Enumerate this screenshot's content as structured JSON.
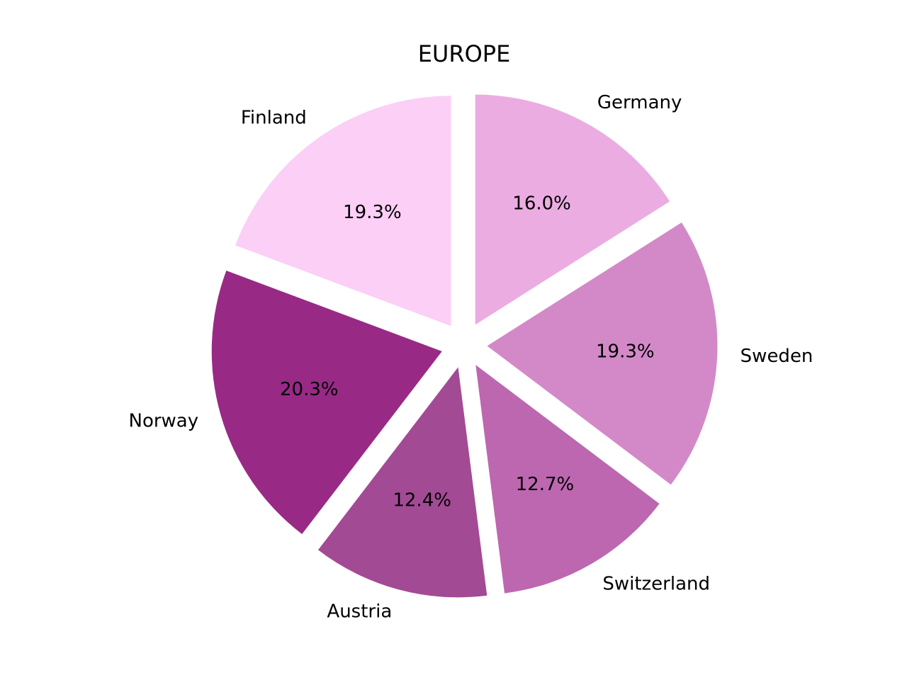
{
  "chart_data": {
    "type": "pie",
    "title": "EUROPE",
    "slices": [
      {
        "label": "Finland",
        "value": 19.3,
        "pct_text": "19.3%",
        "color": "#FBCFF6"
      },
      {
        "label": "Norway",
        "value": 20.3,
        "pct_text": "20.3%",
        "color": "#982A86"
      },
      {
        "label": "Austria",
        "value": 12.4,
        "pct_text": "12.4%",
        "color": "#A34A95"
      },
      {
        "label": "Switzerland",
        "value": 12.7,
        "pct_text": "12.7%",
        "color": "#BD67B0"
      },
      {
        "label": "Sweden",
        "value": 19.3,
        "pct_text": "19.3%",
        "color": "#D389C8"
      },
      {
        "label": "Germany",
        "value": 16.0,
        "pct_text": "16.0%",
        "color": "#EBACE2"
      }
    ],
    "start_angle_deg": 90,
    "direction": "counterclockwise",
    "legend": "none"
  }
}
